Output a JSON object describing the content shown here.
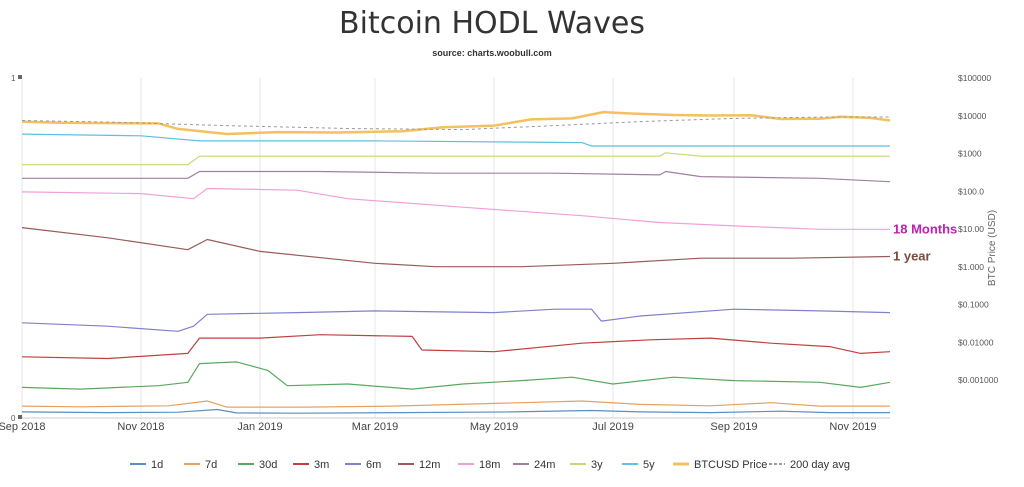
{
  "title": "Bitcoin HODL Waves",
  "subtitle": "source: charts.woobull.com",
  "chart_data": {
    "type": "line",
    "x_ticks": [
      "Sep 2018",
      "Nov 2018",
      "Jan 2019",
      "Mar 2019",
      "May 2019",
      "Jul 2019",
      "Sep 2019",
      "Nov 2019"
    ],
    "x_tick_dates": [
      "2018-09-01",
      "2018-11-01",
      "2019-01-01",
      "2019-03-01",
      "2019-05-01",
      "2019-07-01",
      "2019-09-01",
      "2019-11-01"
    ],
    "x_range": [
      "2018-09-01",
      "2019-11-20"
    ],
    "left_axis": {
      "ticks": [
        "1",
        "0"
      ],
      "range": [
        0,
        1
      ]
    },
    "right_axis": {
      "label": "BTC Price (USD)",
      "scale": "log",
      "range": [
        0.0001,
        100000
      ],
      "tick_values": [
        100000,
        10000,
        1000,
        100,
        10,
        1,
        0.1,
        0.01,
        0.001
      ],
      "tick_labels": [
        "$100000",
        "$10000",
        "$1000",
        "$100.0",
        "$10.00",
        "$1.000",
        "$0.1000",
        "$0.01000",
        "$0.001000"
      ]
    },
    "grid": "vertical",
    "legend_position": "bottom",
    "annotations": [
      {
        "text": "18 Months",
        "series": "18m",
        "color": "#c020b0"
      },
      {
        "text": "1 year",
        "series": "12m",
        "color": "#7a4a3a"
      }
    ],
    "series": [
      {
        "name": "1d",
        "color": "#5a8fc0",
        "points": [
          [
            "2018-09-01",
            0.018
          ],
          [
            "2018-10-15",
            0.016
          ],
          [
            "2018-11-20",
            0.017
          ],
          [
            "2018-12-10",
            0.025
          ],
          [
            "2018-12-20",
            0.015
          ],
          [
            "2019-01-20",
            0.014
          ],
          [
            "2019-03-15",
            0.016
          ],
          [
            "2019-05-10",
            0.018
          ],
          [
            "2019-06-20",
            0.022
          ],
          [
            "2019-07-15",
            0.018
          ],
          [
            "2019-08-20",
            0.016
          ],
          [
            "2019-09-25",
            0.02
          ],
          [
            "2019-10-20",
            0.016
          ],
          [
            "2019-11-20",
            0.016
          ]
        ]
      },
      {
        "name": "7d",
        "color": "#e8a060",
        "points": [
          [
            "2018-09-01",
            0.035
          ],
          [
            "2018-10-01",
            0.033
          ],
          [
            "2018-11-15",
            0.036
          ],
          [
            "2018-12-05",
            0.05
          ],
          [
            "2018-12-15",
            0.032
          ],
          [
            "2019-01-25",
            0.032
          ],
          [
            "2019-03-10",
            0.035
          ],
          [
            "2019-05-15",
            0.045
          ],
          [
            "2019-06-15",
            0.05
          ],
          [
            "2019-07-15",
            0.04
          ],
          [
            "2019-08-20",
            0.036
          ],
          [
            "2019-09-20",
            0.045
          ],
          [
            "2019-10-15",
            0.035
          ],
          [
            "2019-11-20",
            0.035
          ]
        ]
      },
      {
        "name": "30d",
        "color": "#5aa860",
        "points": [
          [
            "2018-09-01",
            0.09
          ],
          [
            "2018-10-01",
            0.085
          ],
          [
            "2018-11-10",
            0.095
          ],
          [
            "2018-11-25",
            0.105
          ],
          [
            "2018-12-01",
            0.16
          ],
          [
            "2018-12-20",
            0.165
          ],
          [
            "2019-01-05",
            0.14
          ],
          [
            "2019-01-15",
            0.095
          ],
          [
            "2019-02-15",
            0.1
          ],
          [
            "2019-03-20",
            0.085
          ],
          [
            "2019-04-15",
            0.1
          ],
          [
            "2019-05-15",
            0.11
          ],
          [
            "2019-06-10",
            0.12
          ],
          [
            "2019-07-01",
            0.1
          ],
          [
            "2019-08-01",
            0.12
          ],
          [
            "2019-09-01",
            0.11
          ],
          [
            "2019-10-15",
            0.105
          ],
          [
            "2019-11-05",
            0.09
          ],
          [
            "2019-11-20",
            0.105
          ]
        ]
      },
      {
        "name": "3m",
        "color": "#c04040",
        "points": [
          [
            "2018-09-01",
            0.18
          ],
          [
            "2018-10-15",
            0.175
          ],
          [
            "2018-11-25",
            0.19
          ],
          [
            "2018-12-01",
            0.235
          ],
          [
            "2019-01-01",
            0.235
          ],
          [
            "2019-02-01",
            0.245
          ],
          [
            "2019-03-20",
            0.24
          ],
          [
            "2019-03-25",
            0.2
          ],
          [
            "2019-05-01",
            0.195
          ],
          [
            "2019-06-15",
            0.22
          ],
          [
            "2019-07-20",
            0.23
          ],
          [
            "2019-08-20",
            0.235
          ],
          [
            "2019-09-20",
            0.22
          ],
          [
            "2019-10-20",
            0.21
          ],
          [
            "2019-11-05",
            0.19
          ],
          [
            "2019-11-20",
            0.195
          ]
        ]
      },
      {
        "name": "6m",
        "color": "#8080d0",
        "points": [
          [
            "2018-09-01",
            0.28
          ],
          [
            "2018-10-15",
            0.27
          ],
          [
            "2018-11-20",
            0.255
          ],
          [
            "2018-11-28",
            0.27
          ],
          [
            "2018-12-05",
            0.305
          ],
          [
            "2019-01-20",
            0.31
          ],
          [
            "2019-03-01",
            0.315
          ],
          [
            "2019-05-01",
            0.31
          ],
          [
            "2019-06-01",
            0.32
          ],
          [
            "2019-06-20",
            0.32
          ],
          [
            "2019-06-25",
            0.285
          ],
          [
            "2019-07-15",
            0.3
          ],
          [
            "2019-09-01",
            0.32
          ],
          [
            "2019-10-15",
            0.315
          ],
          [
            "2019-11-20",
            0.31
          ]
        ]
      },
      {
        "name": "12m",
        "color": "#9a5a5a",
        "points": [
          [
            "2018-09-01",
            0.56
          ],
          [
            "2018-10-15",
            0.53
          ],
          [
            "2018-11-25",
            0.495
          ],
          [
            "2018-12-05",
            0.525
          ],
          [
            "2019-01-01",
            0.49
          ],
          [
            "2019-03-01",
            0.455
          ],
          [
            "2019-04-01",
            0.445
          ],
          [
            "2019-05-15",
            0.445
          ],
          [
            "2019-07-01",
            0.455
          ],
          [
            "2019-08-15",
            0.47
          ],
          [
            "2019-10-01",
            0.47
          ],
          [
            "2019-11-20",
            0.475
          ]
        ]
      },
      {
        "name": "18m",
        "color": "#f0a0d8",
        "points": [
          [
            "2018-09-01",
            0.665
          ],
          [
            "2018-11-01",
            0.66
          ],
          [
            "2018-11-28",
            0.645
          ],
          [
            "2018-12-05",
            0.675
          ],
          [
            "2019-01-20",
            0.67
          ],
          [
            "2019-02-15",
            0.645
          ],
          [
            "2019-04-15",
            0.62
          ],
          [
            "2019-06-15",
            0.595
          ],
          [
            "2019-07-25",
            0.575
          ],
          [
            "2019-09-01",
            0.565
          ],
          [
            "2019-10-15",
            0.555
          ],
          [
            "2019-11-20",
            0.555
          ]
        ]
      },
      {
        "name": "24m",
        "color": "#a080a0",
        "points": [
          [
            "2018-09-01",
            0.705
          ],
          [
            "2018-11-01",
            0.705
          ],
          [
            "2018-11-25",
            0.705
          ],
          [
            "2018-12-01",
            0.725
          ],
          [
            "2019-02-01",
            0.725
          ],
          [
            "2019-04-01",
            0.72
          ],
          [
            "2019-06-01",
            0.72
          ],
          [
            "2019-07-25",
            0.715
          ],
          [
            "2019-07-28",
            0.725
          ],
          [
            "2019-08-15",
            0.71
          ],
          [
            "2019-10-15",
            0.705
          ],
          [
            "2019-11-20",
            0.695
          ]
        ]
      },
      {
        "name": "3y",
        "color": "#c8d870",
        "points": [
          [
            "2018-09-01",
            0.745
          ],
          [
            "2018-11-01",
            0.745
          ],
          [
            "2018-11-25",
            0.745
          ],
          [
            "2018-12-01",
            0.77
          ],
          [
            "2019-02-01",
            0.77
          ],
          [
            "2019-05-01",
            0.77
          ],
          [
            "2019-07-25",
            0.77
          ],
          [
            "2019-07-28",
            0.78
          ],
          [
            "2019-08-15",
            0.77
          ],
          [
            "2019-11-20",
            0.77
          ]
        ]
      },
      {
        "name": "5y",
        "color": "#60c0e0",
        "points": [
          [
            "2018-09-01",
            0.835
          ],
          [
            "2018-11-01",
            0.83
          ],
          [
            "2018-12-01",
            0.815
          ],
          [
            "2019-03-01",
            0.815
          ],
          [
            "2019-06-15",
            0.81
          ],
          [
            "2019-06-20",
            0.8
          ],
          [
            "2019-09-01",
            0.8
          ],
          [
            "2019-11-20",
            0.8
          ]
        ]
      },
      {
        "name": "BTCUSD Price",
        "color": "#f5c060",
        "points": [
          [
            "2018-09-01",
            7000
          ],
          [
            "2018-09-20",
            6500
          ],
          [
            "2018-10-15",
            6400
          ],
          [
            "2018-11-10",
            6300
          ],
          [
            "2018-11-20",
            4500
          ],
          [
            "2018-12-15",
            3300
          ],
          [
            "2019-01-10",
            3700
          ],
          [
            "2019-02-10",
            3600
          ],
          [
            "2019-03-15",
            3900
          ],
          [
            "2019-04-05",
            5000
          ],
          [
            "2019-05-01",
            5500
          ],
          [
            "2019-05-20",
            8000
          ],
          [
            "2019-06-10",
            8500
          ],
          [
            "2019-06-26",
            12500
          ],
          [
            "2019-07-10",
            11500
          ],
          [
            "2019-08-01",
            10500
          ],
          [
            "2019-08-20",
            10200
          ],
          [
            "2019-09-10",
            10300
          ],
          [
            "2019-09-25",
            8200
          ],
          [
            "2019-10-15",
            8300
          ],
          [
            "2019-10-26",
            9400
          ],
          [
            "2019-11-10",
            8800
          ],
          [
            "2019-11-20",
            7500
          ]
        ]
      },
      {
        "name": "200 day avg",
        "color": "#999999",
        "dashed": true,
        "points": [
          [
            "2018-09-01",
            7500
          ],
          [
            "2018-10-15",
            6800
          ],
          [
            "2018-12-15",
            5500
          ],
          [
            "2019-02-15",
            4600
          ],
          [
            "2019-04-15",
            4300
          ],
          [
            "2019-06-01",
            5500
          ],
          [
            "2019-07-15",
            7000
          ],
          [
            "2019-09-01",
            8500
          ],
          [
            "2019-10-15",
            9200
          ],
          [
            "2019-11-20",
            9300
          ]
        ]
      }
    ]
  }
}
